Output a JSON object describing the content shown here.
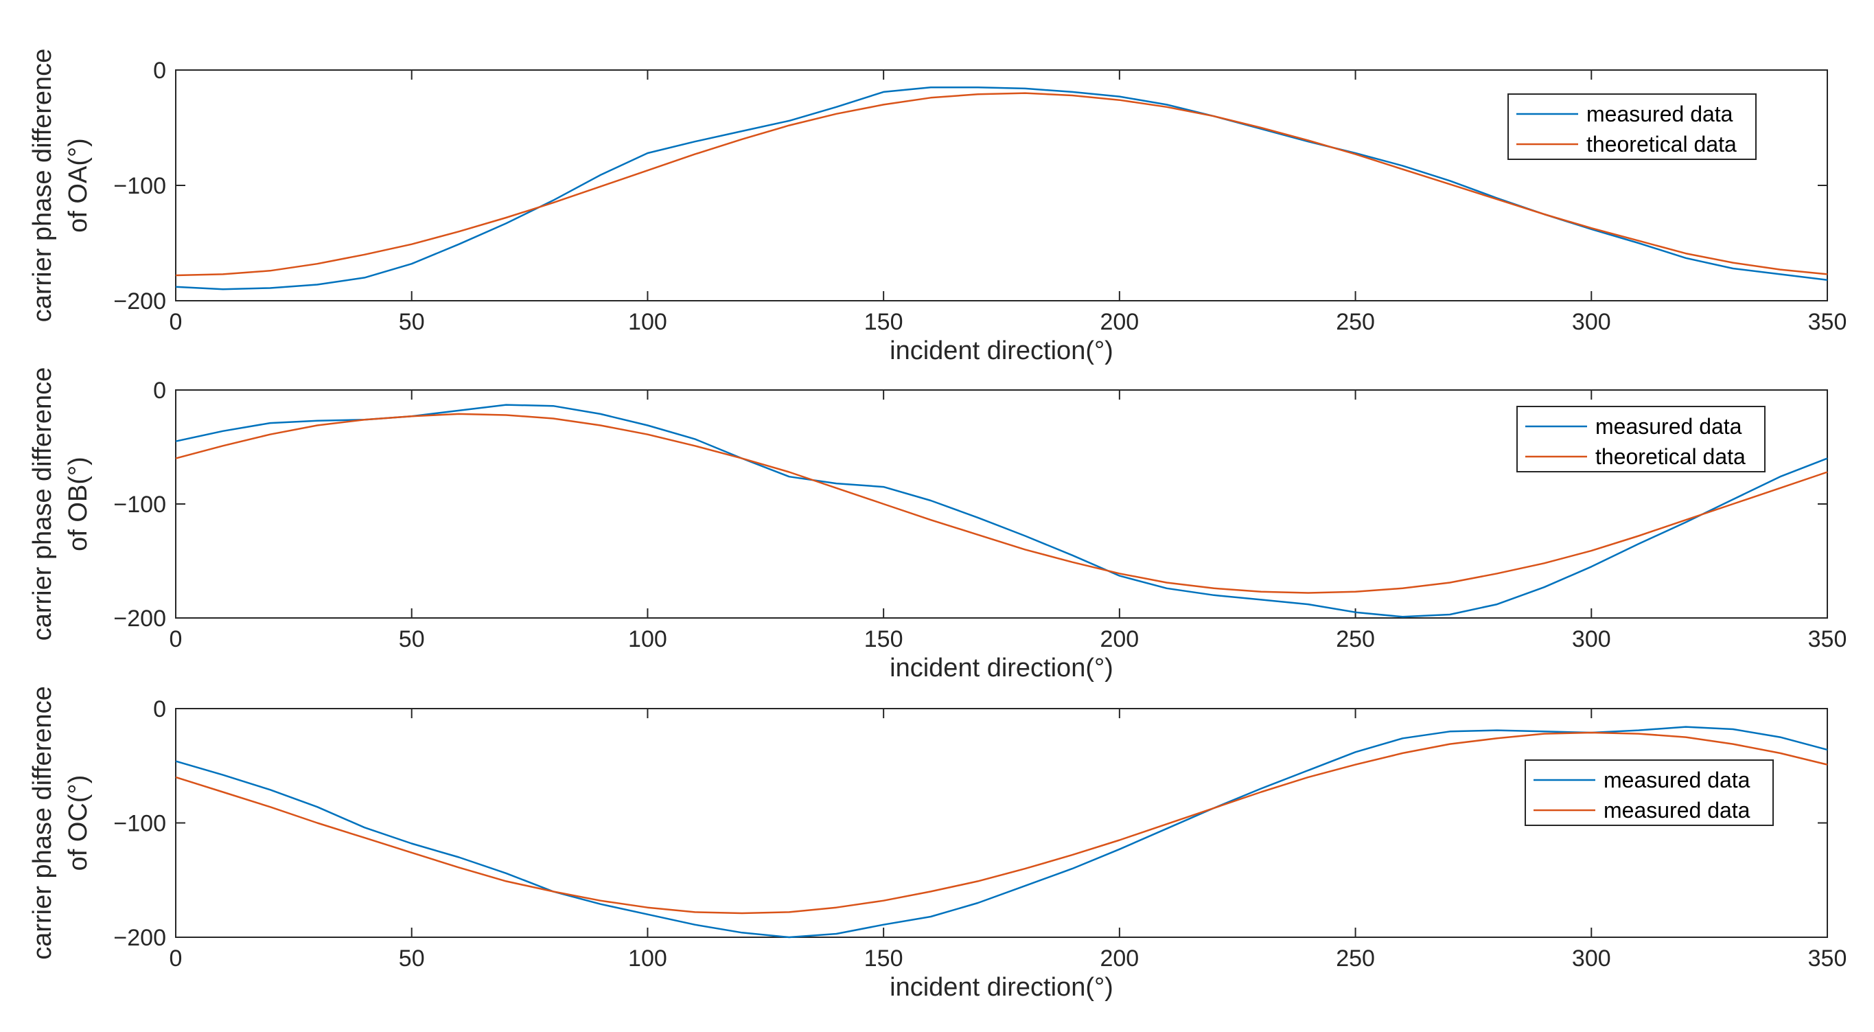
{
  "chart_data": [
    {
      "type": "line",
      "xlabel": "incident direction(°)",
      "ylabel_lines": [
        "carrier phase difference",
        "of OA(°)"
      ],
      "xlim": [
        0,
        350
      ],
      "ylim": [
        -200,
        0
      ],
      "xticks": [
        0,
        50,
        100,
        150,
        200,
        250,
        300,
        350
      ],
      "yticks": [
        0,
        -100,
        -200
      ],
      "ytick_labels": [
        "0",
        "−100",
        "−200"
      ],
      "grid": false,
      "legend_position": "top-right",
      "x": [
        0,
        10,
        20,
        30,
        40,
        50,
        60,
        70,
        80,
        90,
        100,
        110,
        120,
        130,
        140,
        150,
        160,
        170,
        180,
        190,
        200,
        210,
        220,
        230,
        240,
        250,
        260,
        270,
        280,
        290,
        300,
        310,
        320,
        330,
        340,
        350
      ],
      "series": [
        {
          "name": "measured data",
          "color": "#0072BD",
          "values": [
            -188,
            -190,
            -189,
            -186,
            -180,
            -168,
            -151,
            -133,
            -113,
            -91,
            -72,
            -62,
            -53,
            -44,
            -32,
            -19,
            -15,
            -15,
            -16,
            -19,
            -23,
            -30,
            -40,
            -51,
            -62,
            -72,
            -83,
            -96,
            -111,
            -125,
            -138,
            -150,
            -163,
            -172,
            -177,
            -182
          ]
        },
        {
          "name": "theoretical data",
          "color": "#D95319",
          "values": [
            -178,
            -177,
            -174,
            -168,
            -160,
            -151,
            -140,
            -128,
            -115,
            -101,
            -87,
            -73,
            -60,
            -48,
            -38,
            -30,
            -24,
            -21,
            -20,
            -22,
            -26,
            -32,
            -40,
            -50,
            -61,
            -73,
            -86,
            -99,
            -112,
            -125,
            -137,
            -148,
            -159,
            -167,
            -173,
            -177
          ]
        }
      ]
    },
    {
      "type": "line",
      "xlabel": "incident direction(°)",
      "ylabel_lines": [
        "carrier phase difference",
        "of OB(°)"
      ],
      "xlim": [
        0,
        350
      ],
      "ylim": [
        -200,
        0
      ],
      "xticks": [
        0,
        50,
        100,
        150,
        200,
        250,
        300,
        350
      ],
      "yticks": [
        0,
        -100,
        -200
      ],
      "ytick_labels": [
        "0",
        "−100",
        "−200"
      ],
      "grid": false,
      "legend_position": "top-right",
      "x": [
        0,
        10,
        20,
        30,
        40,
        50,
        60,
        70,
        80,
        90,
        100,
        110,
        120,
        130,
        140,
        150,
        160,
        170,
        180,
        190,
        200,
        210,
        220,
        230,
        240,
        250,
        260,
        270,
        280,
        290,
        300,
        310,
        320,
        330,
        340,
        350
      ],
      "series": [
        {
          "name": "measured data",
          "color": "#0072BD",
          "values": [
            -45,
            -36,
            -29,
            -27,
            -26,
            -23,
            -18,
            -13,
            -14,
            -21,
            -31,
            -43,
            -60,
            -76,
            -82,
            -85,
            -97,
            -112,
            -128,
            -145,
            -163,
            -174,
            -180,
            -184,
            -188,
            -195,
            -199,
            -197,
            -188,
            -173,
            -155,
            -135,
            -116,
            -96,
            -76,
            -60
          ]
        },
        {
          "name": "theoretical data",
          "color": "#D95319",
          "values": [
            -60,
            -49,
            -39,
            -31,
            -26,
            -23,
            -21,
            -22,
            -25,
            -31,
            -39,
            -49,
            -60,
            -72,
            -86,
            -100,
            -114,
            -127,
            -140,
            -151,
            -161,
            -169,
            -174,
            -177,
            -178,
            -177,
            -174,
            -169,
            -161,
            -152,
            -141,
            -128,
            -114,
            -100,
            -86,
            -72
          ]
        }
      ]
    },
    {
      "type": "line",
      "xlabel": "incident direction(°)",
      "ylabel_lines": [
        "carrier phase difference",
        "of OC(°)"
      ],
      "xlim": [
        0,
        350
      ],
      "ylim": [
        -200,
        0
      ],
      "xticks": [
        0,
        50,
        100,
        150,
        200,
        250,
        300,
        350
      ],
      "yticks": [
        0,
        -100,
        -200
      ],
      "ytick_labels": [
        "0",
        "−100",
        "−200"
      ],
      "grid": false,
      "legend_position": "top-right",
      "x": [
        0,
        10,
        20,
        30,
        40,
        50,
        60,
        70,
        80,
        90,
        100,
        110,
        120,
        130,
        140,
        150,
        160,
        170,
        180,
        190,
        200,
        210,
        220,
        230,
        240,
        250,
        260,
        270,
        280,
        290,
        300,
        310,
        320,
        330,
        340,
        350
      ],
      "series": [
        {
          "name": "measured data",
          "color": "#0072BD",
          "values": [
            -46,
            -58,
            -71,
            -86,
            -104,
            -118,
            -130,
            -144,
            -160,
            -171,
            -180,
            -189,
            -196,
            -200,
            -197,
            -189,
            -182,
            -170,
            -155,
            -140,
            -123,
            -105,
            -87,
            -70,
            -54,
            -38,
            -26,
            -20,
            -19,
            -20,
            -21,
            -19,
            -16,
            -18,
            -25,
            -36
          ]
        },
        {
          "name": "measured data",
          "color": "#D95319",
          "values": [
            -60,
            -73,
            -86,
            -100,
            -113,
            -126,
            -139,
            -151,
            -160,
            -168,
            -174,
            -178,
            -179,
            -178,
            -174,
            -168,
            -160,
            -151,
            -140,
            -128,
            -115,
            -101,
            -87,
            -73,
            -60,
            -49,
            -39,
            -31,
            -26,
            -22,
            -21,
            -22,
            -25,
            -31,
            -39,
            -49
          ]
        }
      ]
    }
  ]
}
